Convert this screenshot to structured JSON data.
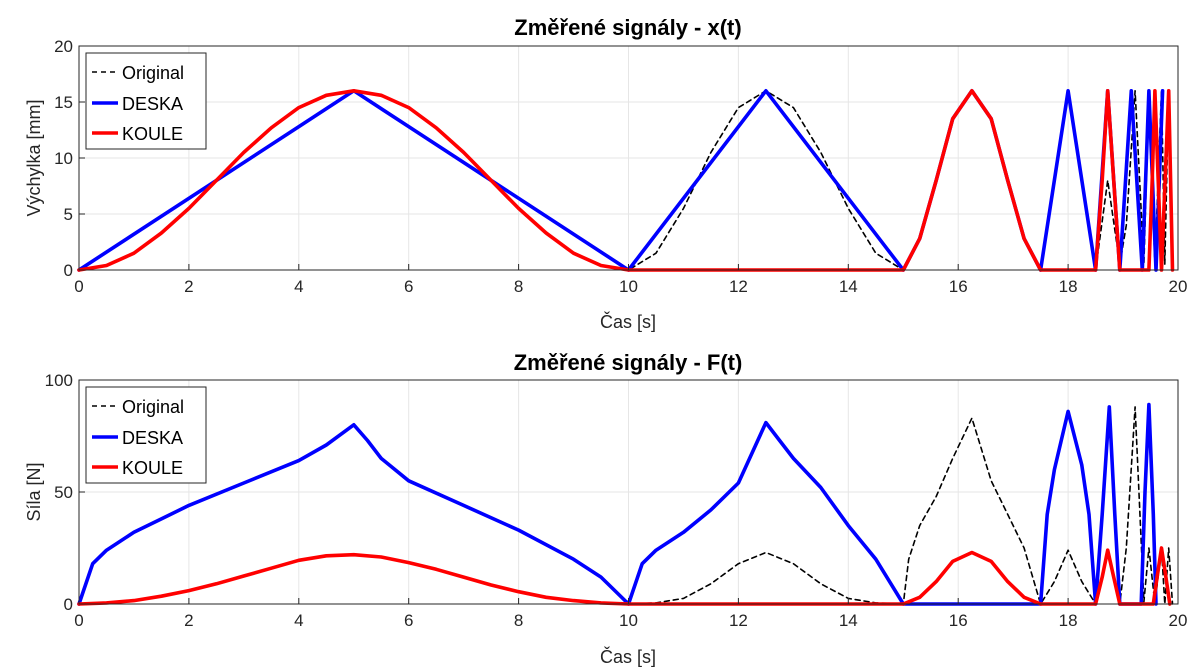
{
  "colors": {
    "original": "#000000",
    "deska": "#0000ff",
    "koule": "#ff0000"
  },
  "chart_data": [
    {
      "type": "line",
      "title": "Změřené signály - x(t)",
      "xlabel": "Čas [s]",
      "ylabel": "Výchylka [mm]",
      "xlim": [
        0,
        20
      ],
      "ylim": [
        0,
        20
      ],
      "xticks": [
        0,
        2,
        4,
        6,
        8,
        10,
        12,
        14,
        16,
        18,
        20
      ],
      "yticks": [
        0,
        5,
        10,
        15,
        20
      ],
      "grid": true,
      "legend": "top-left",
      "series": [
        {
          "name": "Original",
          "style": "dashed",
          "x": [
            0,
            0.5,
            1,
            1.5,
            2,
            2.5,
            3,
            3.5,
            4,
            4.5,
            5,
            5.5,
            6,
            6.5,
            7,
            7.5,
            8,
            8.5,
            9,
            9.5,
            10,
            10.5,
            11,
            11.5,
            12,
            12.5,
            13,
            13.5,
            14,
            14.5,
            15,
            15.3,
            15.6,
            15.9,
            16.25,
            16.6,
            16.9,
            17.2,
            17.5,
            17.75,
            18.0,
            18.25,
            18.5,
            18.72,
            18.94,
            19.06,
            19.22,
            19.38,
            19.47,
            19.58,
            19.7,
            19.76,
            19.83,
            19.9
          ],
          "y": [
            0,
            0.4,
            1.5,
            3.3,
            5.5,
            8.0,
            10.5,
            12.7,
            14.5,
            15.6,
            16,
            15.6,
            14.5,
            12.7,
            10.5,
            8.0,
            5.5,
            3.3,
            1.5,
            0.4,
            0,
            1.5,
            5.5,
            10.5,
            14.5,
            16,
            14.5,
            10.5,
            5.5,
            1.5,
            0,
            2.8,
            8.0,
            13.5,
            16,
            13.5,
            8.0,
            2.8,
            0,
            8.0,
            16,
            8.0,
            0,
            8.0,
            0.5,
            4,
            16,
            0.5,
            16,
            0.5,
            16,
            0.5,
            16,
            0.5
          ]
        },
        {
          "name": "DESKA",
          "style": "solid",
          "x": [
            0,
            5,
            10,
            12.5,
            15,
            15.3,
            15.6,
            15.9,
            16.25,
            16.6,
            16.9,
            17.2,
            17.5,
            18.0,
            18.5,
            18.72,
            18.94,
            19.15,
            19.35,
            19.47,
            19.6,
            19.72
          ],
          "y": [
            0,
            16,
            0,
            16,
            0,
            2.8,
            8.0,
            13.5,
            16,
            13.5,
            8.0,
            2.8,
            0,
            16,
            0,
            16,
            0,
            16,
            0,
            16,
            0,
            16
          ]
        },
        {
          "name": "KOULE",
          "style": "solid",
          "x": [
            0,
            0.5,
            1,
            1.5,
            2,
            2.5,
            3,
            3.5,
            4,
            4.5,
            5,
            5.5,
            6,
            6.5,
            7,
            7.5,
            8,
            8.5,
            9,
            9.5,
            10,
            15,
            15.3,
            15.6,
            15.9,
            16.25,
            16.6,
            16.9,
            17.2,
            17.5,
            18.5,
            18.62,
            18.72,
            18.83,
            18.94,
            19.47,
            19.53,
            19.58,
            19.64,
            19.7,
            19.83,
            19.9
          ],
          "y": [
            0,
            0.4,
            1.5,
            3.3,
            5.5,
            8.0,
            10.5,
            12.7,
            14.5,
            15.6,
            16,
            15.6,
            14.5,
            12.7,
            10.5,
            8.0,
            5.5,
            3.3,
            1.5,
            0.4,
            0,
            0,
            2.8,
            8.0,
            13.5,
            16,
            13.5,
            8.0,
            2.8,
            0,
            0,
            8.0,
            16,
            8.0,
            0,
            0,
            8.0,
            16,
            8.0,
            0,
            16,
            0
          ]
        }
      ]
    },
    {
      "type": "line",
      "title": "Změřené signály - F(t)",
      "xlabel": "Čas [s]",
      "ylabel": "Síla [N]",
      "xlim": [
        0,
        20
      ],
      "ylim": [
        0,
        100
      ],
      "xticks": [
        0,
        2,
        4,
        6,
        8,
        10,
        12,
        14,
        16,
        18,
        20
      ],
      "yticks": [
        0,
        50,
        100
      ],
      "grid": true,
      "legend": "top-left",
      "series": [
        {
          "name": "Original",
          "style": "dashed",
          "x": [
            10,
            10.5,
            11,
            11.5,
            12,
            12.5,
            13,
            13.5,
            14,
            14.5,
            15,
            15.1,
            15.3,
            15.6,
            15.9,
            16.25,
            16.6,
            16.9,
            17.2,
            17.5,
            17.75,
            18.0,
            18.25,
            18.5,
            18.72,
            18.94,
            19.06,
            19.22,
            19.38,
            19.47,
            19.58,
            19.7,
            19.76,
            19.83,
            19.9
          ],
          "y": [
            0,
            0.5,
            2.5,
            9,
            18,
            23,
            18,
            9,
            2.5,
            0.5,
            0,
            20,
            35,
            48,
            65,
            83,
            55,
            40,
            25,
            0,
            10,
            24,
            10,
            0,
            24,
            0,
            25,
            88,
            1,
            25,
            0,
            25,
            0,
            25,
            0
          ]
        },
        {
          "name": "DESKA",
          "style": "solid",
          "x": [
            0,
            0.25,
            0.5,
            1,
            1.5,
            2,
            3,
            4,
            4.5,
            5,
            5.25,
            5.5,
            6,
            7,
            8,
            9,
            9.5,
            10,
            10.25,
            10.5,
            11,
            11.5,
            12,
            12.5,
            12.75,
            13,
            13.5,
            14,
            14.5,
            15,
            15,
            17.5,
            17.62,
            17.75,
            18.0,
            18.25,
            18.38,
            18.5,
            18.62,
            18.75,
            18.85,
            18.94,
            19.33,
            19.4,
            19.47,
            19.55,
            19.6
          ],
          "y": [
            0,
            18,
            24,
            32,
            38,
            44,
            54,
            64,
            71,
            80,
            73,
            65,
            55,
            44,
            33,
            20,
            12,
            0,
            18,
            24,
            32,
            42,
            54,
            81,
            73,
            65,
            52,
            35,
            20,
            0,
            0,
            0,
            40,
            60,
            86,
            62,
            40,
            0,
            40,
            88,
            40,
            0,
            0,
            50,
            89,
            40,
            0
          ]
        },
        {
          "name": "KOULE",
          "style": "solid",
          "x": [
            0,
            0.5,
            1,
            1.5,
            2,
            2.5,
            3,
            3.5,
            4,
            4.5,
            5,
            5.5,
            6,
            6.5,
            7,
            7.5,
            8,
            8.5,
            9,
            9.5,
            10,
            15,
            15.3,
            15.6,
            15.9,
            16.25,
            16.6,
            16.9,
            17.2,
            17.5,
            18.5,
            18.62,
            18.72,
            18.83,
            18.94,
            19.55,
            19.62,
            19.7,
            19.78,
            19.85
          ],
          "y": [
            0,
            0.5,
            1.5,
            3.5,
            6,
            9,
            12.5,
            16,
            19.5,
            21.5,
            22,
            21,
            18.5,
            15.5,
            12,
            8.5,
            5.5,
            3,
            1.5,
            0.5,
            0,
            0,
            3,
            10,
            19,
            23,
            19,
            10,
            3,
            0,
            0,
            12,
            24,
            12,
            0,
            0,
            12,
            25,
            12,
            0
          ]
        }
      ]
    }
  ]
}
